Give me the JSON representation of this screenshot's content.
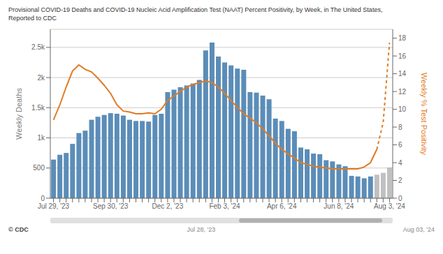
{
  "chart_data": {
    "type": "bar",
    "title": "Provisional COVID-19 Deaths and COVID-19 Nucleic Acid Amplification Test (NAAT) Percent Positivity, by Week, in The United States,",
    "subtitle": "Reported to CDC",
    "ylabel": "Weekly Deaths",
    "y2label": "Weekly % Test Positivity",
    "annotations": [
      "© CDC",
      "Jul 28, '23",
      "Aug 03, '24"
    ],
    "categories": [
      "Jul 29, '23",
      null,
      null,
      null,
      null,
      null,
      null,
      null,
      null,
      "Sep 30, '23",
      null,
      null,
      null,
      null,
      null,
      null,
      null,
      null,
      "Dec 2, '23",
      null,
      null,
      null,
      null,
      null,
      null,
      null,
      null,
      "Feb 3, '24",
      null,
      null,
      null,
      null,
      null,
      null,
      null,
      null,
      "Apr 6, '24",
      null,
      null,
      null,
      null,
      null,
      null,
      null,
      null,
      "Jun 8, '24",
      null,
      null,
      null,
      null,
      null,
      null,
      null,
      "Aug 3, '24"
    ],
    "ylim": [
      0,
      2800
    ],
    "yticks": [
      0,
      500,
      {
        "value": 1000,
        "label": "1k"
      },
      {
        "value": 1500,
        "label": "1.5k"
      },
      {
        "value": 2000,
        "label": "2k"
      },
      {
        "value": 2500,
        "label": "2.5k"
      }
    ],
    "y2lim": [
      0,
      19
    ],
    "y2ticks": [
      0,
      2,
      4,
      6,
      8,
      10,
      12,
      14,
      16,
      18
    ],
    "grid": true,
    "series": [
      {
        "type": "bar",
        "colors": [
          "#5B8DB8",
          "#5B8DB8",
          "#5B8DB8",
          "#5B8DB8",
          "#5B8DB8",
          "#5B8DB8",
          "#5B8DB8",
          "#5B8DB8",
          "#5B8DB8",
          "#5B8DB8",
          "#5B8DB8",
          "#5B8DB8",
          "#5B8DB8",
          "#5B8DB8",
          "#5B8DB8",
          "#5B8DB8",
          "#5B8DB8",
          "#5B8DB8",
          "#5B8DB8",
          "#5B8DB8",
          "#5B8DB8",
          "#5B8DB8",
          "#5B8DB8",
          "#5B8DB8",
          "#5B8DB8",
          "#5B8DB8",
          "#5B8DB8",
          "#5B8DB8",
          "#5B8DB8",
          "#5B8DB8",
          "#5B8DB8",
          "#5B8DB8",
          "#5B8DB8",
          "#5B8DB8",
          "#5B8DB8",
          "#5B8DB8",
          "#5B8DB8",
          "#5B8DB8",
          "#5B8DB8",
          "#5B8DB8",
          "#5B8DB8",
          "#5B8DB8",
          "#5B8DB8",
          "#5B8DB8",
          "#5B8DB8",
          "#5B8DB8",
          "#5B8DB8",
          "#5B8DB8",
          "#5B8DB8",
          "#5B8DB8",
          "#5B8DB8",
          "#C0C0C0",
          "#C0C0C0",
          "#C0C0C0"
        ],
        "values": [
          640,
          720,
          750,
          900,
          1080,
          1120,
          1300,
          1350,
          1380,
          1410,
          1400,
          1370,
          1300,
          1280,
          1280,
          1270,
          1380,
          1400,
          1760,
          1800,
          1840,
          1870,
          1900,
          1960,
          2450,
          2580,
          2350,
          2250,
          2200,
          2150,
          2130,
          1760,
          1750,
          1700,
          1640,
          1320,
          1280,
          1150,
          1110,
          840,
          810,
          740,
          730,
          630,
          610,
          560,
          530,
          370,
          360,
          330,
          360,
          390,
          420,
          510
        ]
      },
      {
        "type": "line",
        "axis": "y2",
        "color": "#E07B22",
        "line_style": "solid",
        "values": [
          8.8,
          10.5,
          12.5,
          14.3,
          15.0,
          14.5,
          14.2,
          13.5,
          12.7,
          11.8,
          10.5,
          9.8,
          9.7,
          9.5,
          9.5,
          9.6,
          9.5,
          10.0,
          11.0,
          11.5,
          12.0,
          12.5,
          12.8,
          13.0,
          13.2,
          13.0,
          12.5,
          11.8,
          11.0,
          10.2,
          9.5,
          9.0,
          8.5,
          7.8,
          7.0,
          6.2,
          5.5,
          5.0,
          4.5,
          4.0,
          3.8,
          3.6,
          3.5,
          3.4,
          3.3,
          3.3,
          3.3,
          3.3,
          3.3,
          3.5,
          4.0,
          5.5,
          null,
          null
        ]
      },
      {
        "type": "line",
        "axis": "y2",
        "color": "#E07B22",
        "line_style": "dashed",
        "values": [
          null,
          null,
          null,
          null,
          null,
          null,
          null,
          null,
          null,
          null,
          null,
          null,
          null,
          null,
          null,
          null,
          null,
          null,
          null,
          null,
          null,
          null,
          null,
          null,
          null,
          null,
          null,
          null,
          null,
          null,
          null,
          null,
          null,
          null,
          null,
          null,
          null,
          null,
          null,
          null,
          null,
          null,
          null,
          null,
          null,
          null,
          null,
          null,
          null,
          null,
          null,
          5.5,
          8.5,
          17.5
        ]
      }
    ]
  }
}
